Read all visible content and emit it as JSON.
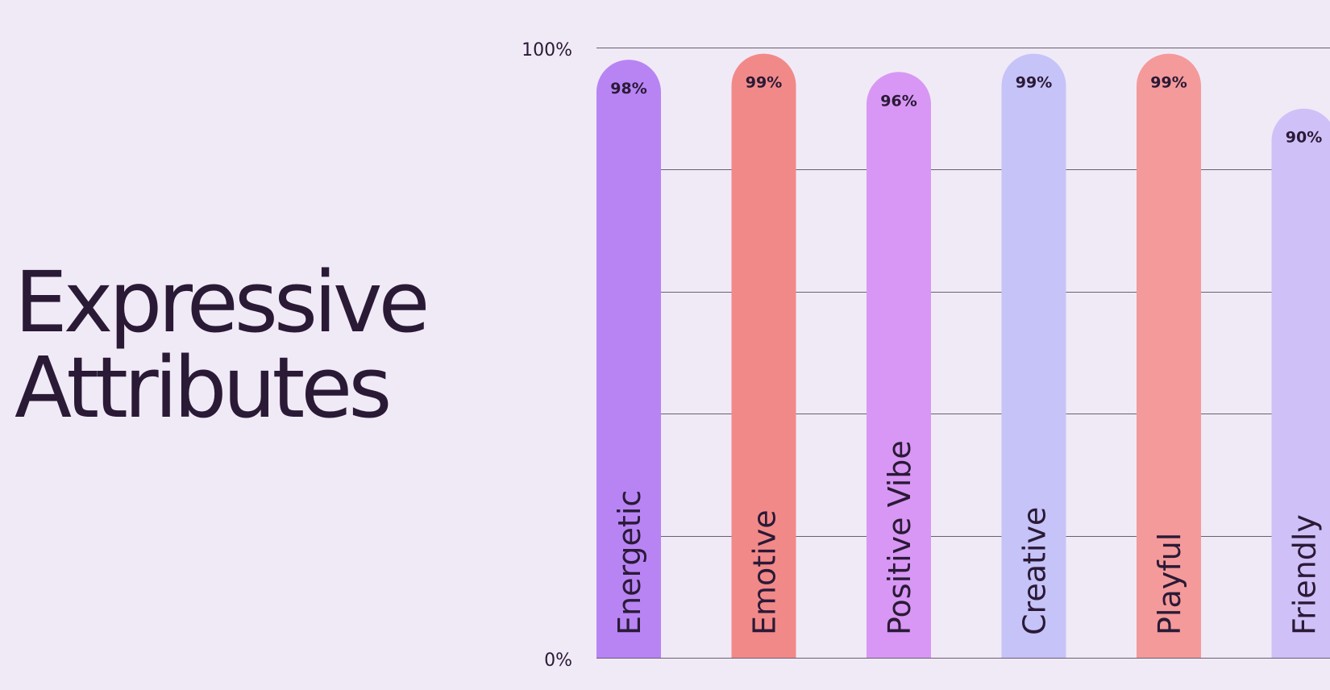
{
  "slide": {
    "title_line1": "Expressive",
    "title_line2": "Attributes"
  },
  "chart_data": {
    "type": "bar",
    "title": "",
    "xlabel": "",
    "ylabel": "",
    "ylim": [
      0,
      100
    ],
    "yticks": [
      "0%",
      "100%"
    ],
    "grid": true,
    "categories": [
      "Energetic",
      "Emotive",
      "Positive Vibe",
      "Creative",
      "Playful",
      "Friendly"
    ],
    "values": [
      98,
      99,
      96,
      99,
      99,
      90
    ],
    "value_labels": [
      "98%",
      "99%",
      "96%",
      "99%",
      "99%",
      "90%"
    ],
    "colors": [
      "#b884f4",
      "#f28989",
      "#d897f4",
      "#c6c3f8",
      "#f49a9a",
      "#d0c0f8"
    ]
  }
}
